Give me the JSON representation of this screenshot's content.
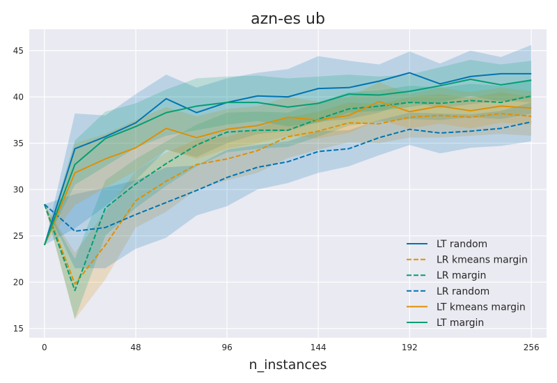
{
  "chart_data": {
    "type": "line",
    "title": "azn-es ub",
    "xlabel": "n_instances",
    "ylabel": "",
    "xlim": [
      -8,
      264
    ],
    "ylim": [
      14,
      47.3
    ],
    "xticks": [
      0,
      48,
      96,
      144,
      192,
      256
    ],
    "yticks": [
      15,
      20,
      25,
      30,
      35,
      40,
      45
    ],
    "grid": true,
    "background": "#eaeaf2",
    "legend_position": "lower-right",
    "x": [
      0,
      16,
      32,
      48,
      64,
      80,
      96,
      112,
      128,
      144,
      160,
      176,
      192,
      208,
      224,
      240,
      256
    ],
    "series": [
      {
        "name": "LT random",
        "color": "#0173b2",
        "dash": "solid",
        "values": [
          24.0,
          34.4,
          35.7,
          37.2,
          39.8,
          38.3,
          39.4,
          40.1,
          40.0,
          40.9,
          41.0,
          41.7,
          42.6,
          41.4,
          42.2,
          42.5,
          42.5
        ],
        "lower": [
          24.0,
          25.8,
          28.2,
          31.0,
          34.3,
          33.5,
          35.0,
          36.0,
          36.3,
          37.3,
          37.6,
          38.3,
          39.5,
          38.8,
          39.2,
          39.6,
          39.4
        ],
        "upper": [
          24.0,
          38.2,
          38.0,
          40.3,
          42.4,
          41.0,
          42.0,
          42.6,
          43.0,
          44.4,
          43.9,
          43.5,
          44.9,
          43.6,
          45.0,
          44.3,
          45.6
        ]
      },
      {
        "name": "LR kmeans margin",
        "color": "#de8f05",
        "dash": "dashed",
        "values": [
          28.4,
          19.8,
          24.0,
          28.8,
          30.9,
          32.7,
          33.3,
          34.2,
          35.7,
          36.3,
          37.2,
          37.1,
          37.8,
          38.0,
          37.8,
          38.2,
          37.9
        ],
        "lower": [
          28.4,
          16.0,
          20.3,
          25.9,
          27.6,
          30.0,
          31.0,
          31.8,
          33.4,
          34.3,
          35.1,
          35.0,
          35.6,
          35.6,
          35.8,
          36.0,
          35.8
        ],
        "upper": [
          28.4,
          23.2,
          27.6,
          32.0,
          34.0,
          35.4,
          35.7,
          36.6,
          37.8,
          38.4,
          39.4,
          39.2,
          40.0,
          40.3,
          39.9,
          40.5,
          40.0
        ]
      },
      {
        "name": "LR margin",
        "color": "#029e73",
        "dash": "dashed",
        "values": [
          28.4,
          19.1,
          28.0,
          30.6,
          32.8,
          34.8,
          36.2,
          36.4,
          36.4,
          37.6,
          38.7,
          39.0,
          39.4,
          39.3,
          39.6,
          39.4,
          40.1
        ],
        "lower": [
          28.4,
          16.0,
          25.0,
          28.0,
          30.4,
          32.5,
          34.0,
          34.4,
          34.6,
          35.7,
          36.9,
          37.3,
          37.6,
          37.5,
          37.8,
          37.6,
          38.2
        ],
        "upper": [
          28.4,
          22.5,
          31.0,
          33.3,
          35.2,
          37.0,
          38.3,
          38.4,
          38.3,
          39.4,
          40.5,
          40.7,
          41.2,
          41.0,
          41.4,
          41.2,
          41.9
        ]
      },
      {
        "name": "LR random",
        "color": "#0173b2",
        "dash": "dashed",
        "values": [
          28.4,
          25.5,
          25.9,
          27.3,
          28.6,
          29.9,
          31.3,
          32.4,
          33.0,
          34.1,
          34.4,
          35.6,
          36.5,
          36.1,
          36.3,
          36.6,
          37.3
        ],
        "lower": [
          28.4,
          21.5,
          21.5,
          23.6,
          24.8,
          27.2,
          28.2,
          30.0,
          30.7,
          31.8,
          32.5,
          33.7,
          34.8,
          33.9,
          34.5,
          34.7,
          35.2
        ],
        "upper": [
          28.4,
          29.5,
          30.2,
          31.0,
          32.4,
          32.6,
          34.3,
          34.8,
          35.2,
          36.3,
          36.4,
          37.5,
          38.3,
          38.2,
          38.1,
          38.5,
          39.4
        ]
      },
      {
        "name": "LT kmeans margin",
        "color": "#de8f05",
        "dash": "solid",
        "values": [
          24.0,
          31.8,
          33.3,
          34.5,
          36.6,
          35.6,
          36.5,
          36.9,
          37.8,
          37.5,
          38.0,
          39.5,
          38.4,
          39.0,
          38.5,
          39.0,
          38.8
        ],
        "lower": [
          24.0,
          28.3,
          30.2,
          32.0,
          34.3,
          33.3,
          34.4,
          35.0,
          35.8,
          35.5,
          36.1,
          37.5,
          36.6,
          37.1,
          36.6,
          37.2,
          37.0
        ],
        "upper": [
          24.0,
          35.0,
          36.0,
          37.5,
          38.9,
          37.9,
          38.7,
          39.0,
          40.0,
          39.5,
          40.0,
          41.6,
          40.3,
          41.0,
          40.5,
          41.0,
          40.6
        ]
      },
      {
        "name": "LT margin",
        "color": "#029e73",
        "dash": "solid",
        "values": [
          24.0,
          32.7,
          35.5,
          36.8,
          38.3,
          39.0,
          39.4,
          39.4,
          38.9,
          39.3,
          40.3,
          40.2,
          40.6,
          41.2,
          41.9,
          41.3,
          41.8
        ],
        "lower": [
          24.0,
          30.5,
          32.5,
          34.5,
          35.8,
          36.4,
          37.0,
          37.4,
          36.8,
          37.2,
          38.3,
          38.5,
          38.9,
          39.4,
          40.1,
          39.5,
          39.9
        ],
        "upper": [
          24.0,
          35.3,
          38.4,
          39.3,
          40.8,
          42.0,
          42.2,
          42.3,
          42.0,
          42.2,
          42.4,
          42.2,
          42.4,
          43.2,
          44.0,
          43.5,
          43.9
        ]
      }
    ]
  }
}
